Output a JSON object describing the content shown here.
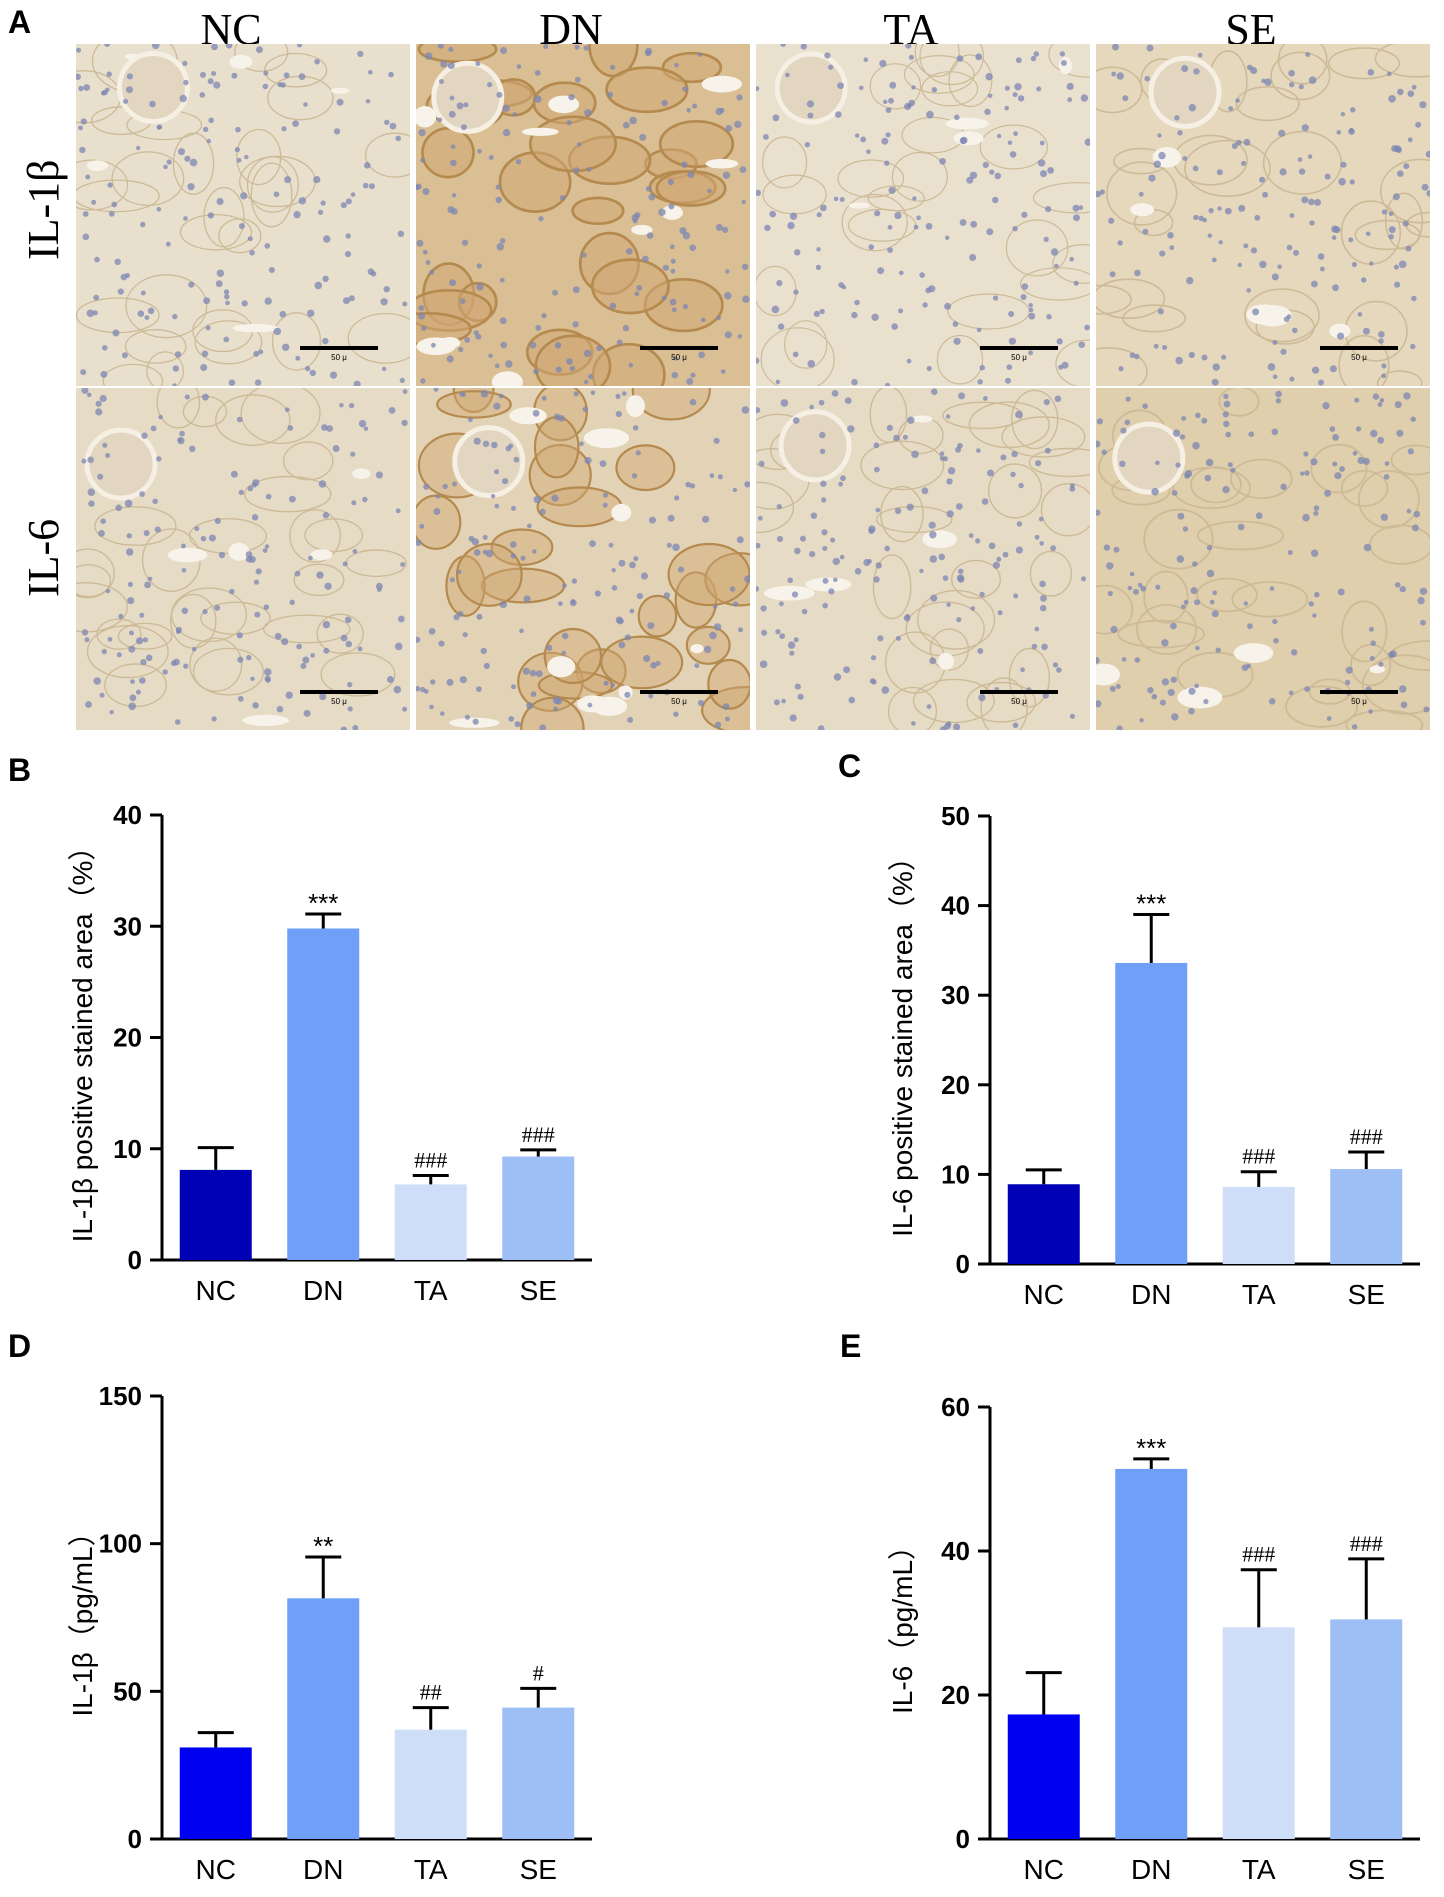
{
  "panel_a": {
    "letter": "A",
    "columns": [
      "NC",
      "DN",
      "TA",
      "SE"
    ],
    "rows": [
      "IL-1β",
      "IL-6"
    ],
    "scale_label": "50 μ",
    "tiles": [
      {
        "row": 0,
        "col": 0,
        "tone": "#e8dfcc",
        "stain": 0.15,
        "glom": true
      },
      {
        "row": 0,
        "col": 1,
        "tone": "#d9bf93",
        "stain": 0.85,
        "glom": true
      },
      {
        "row": 0,
        "col": 2,
        "tone": "#e9e0ce",
        "stain": 0.12,
        "glom": true
      },
      {
        "row": 0,
        "col": 3,
        "tone": "#e5d8bd",
        "stain": 0.3,
        "glom": true
      },
      {
        "row": 1,
        "col": 0,
        "tone": "#e6dcc6",
        "stain": 0.2,
        "glom": true
      },
      {
        "row": 1,
        "col": 1,
        "tone": "#e3d3b6",
        "stain": 0.6,
        "glom": true
      },
      {
        "row": 1,
        "col": 2,
        "tone": "#e6dbc4",
        "stain": 0.2,
        "glom": true
      },
      {
        "row": 1,
        "col": 3,
        "tone": "#e0cfac",
        "stain": 0.4,
        "glom": true
      }
    ]
  },
  "chart_data": [
    {
      "panel": "B",
      "type": "bar",
      "ylabel": "IL-1β positive stained area（%）",
      "categories": [
        "NC",
        "DN",
        "TA",
        "SE"
      ],
      "values": [
        8.1,
        29.8,
        6.8,
        9.3
      ],
      "errors": [
        2.0,
        1.3,
        0.8,
        0.6
      ],
      "annotations": [
        "",
        "***",
        "###",
        "###"
      ],
      "colors": [
        "#0000b4",
        "#6f9ff7",
        "#cfdef8",
        "#9ebff5"
      ],
      "ylim": [
        0,
        40
      ],
      "yticks": [
        0,
        10,
        20,
        30,
        40
      ]
    },
    {
      "panel": "C",
      "type": "bar",
      "ylabel": "IL-6 positive stained area（%）",
      "categories": [
        "NC",
        "DN",
        "TA",
        "SE"
      ],
      "values": [
        8.9,
        33.6,
        8.6,
        10.6
      ],
      "errors": [
        1.6,
        5.4,
        1.7,
        1.9
      ],
      "annotations": [
        "",
        "***",
        "###",
        "###"
      ],
      "colors": [
        "#0000b4",
        "#6f9ff7",
        "#cfdef8",
        "#9ebff5"
      ],
      "ylim": [
        0,
        50
      ],
      "yticks": [
        0,
        10,
        20,
        30,
        40,
        50
      ]
    },
    {
      "panel": "D",
      "type": "bar",
      "ylabel": "IL-1β（pg/mL）",
      "categories": [
        "NC",
        "DN",
        "TA",
        "SE"
      ],
      "values": [
        31.0,
        81.5,
        37.0,
        44.5
      ],
      "errors": [
        5.0,
        14.0,
        7.5,
        6.5
      ],
      "annotations": [
        "",
        "**",
        "##",
        "#"
      ],
      "colors": [
        "#0000f0",
        "#6f9ff7",
        "#cfdef8",
        "#9ebff5"
      ],
      "ylim": [
        0,
        150
      ],
      "yticks": [
        0,
        50,
        100,
        150
      ]
    },
    {
      "panel": "E",
      "type": "bar",
      "ylabel": "IL-6（pg/mL）",
      "categories": [
        "NC",
        "DN",
        "TA",
        "SE"
      ],
      "values": [
        17.3,
        51.4,
        29.4,
        30.5
      ],
      "errors": [
        5.8,
        1.4,
        8.0,
        8.4
      ],
      "annotations": [
        "",
        "***",
        "###",
        "###"
      ],
      "colors": [
        "#0000f0",
        "#6f9ff7",
        "#cfdef8",
        "#9ebff5"
      ],
      "ylim": [
        0,
        60
      ],
      "yticks": [
        0,
        20,
        40,
        60
      ]
    }
  ]
}
